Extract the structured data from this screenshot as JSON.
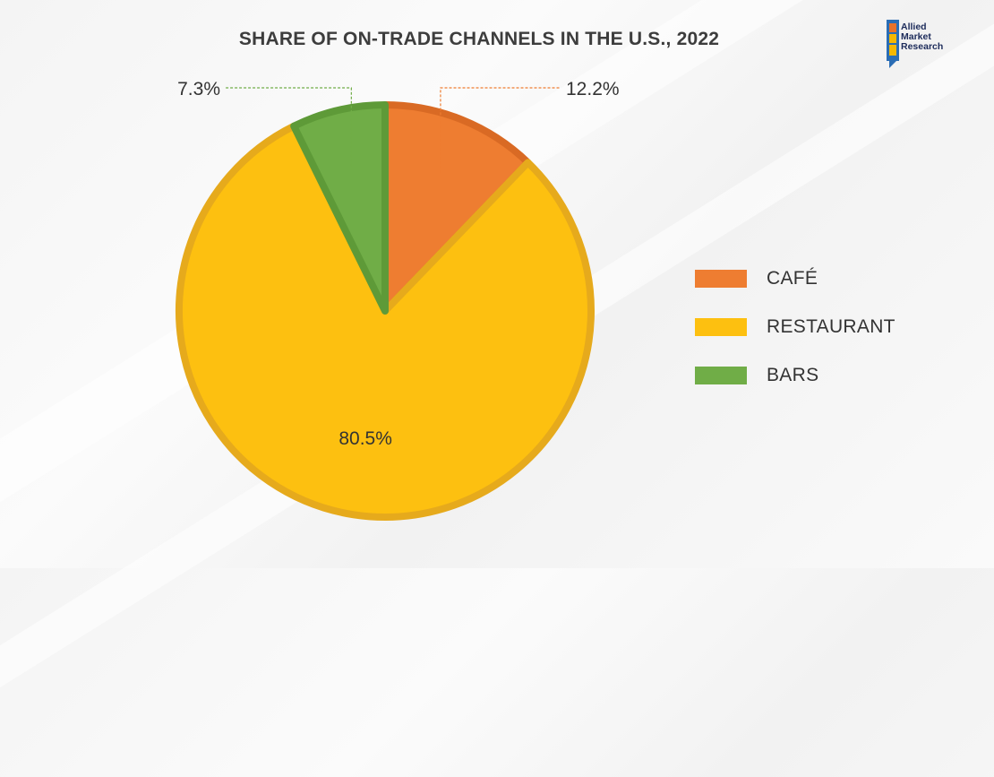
{
  "header": {
    "title": "SHARE OF ON-TRADE CHANNELS IN THE U.S., 2022"
  },
  "logo": {
    "line1": "Allied",
    "line2": "Market",
    "line3": "Research",
    "colors": [
      "#e8722a",
      "#f5b800",
      "#2a6db5",
      "#1c2b5a"
    ]
  },
  "chart_data": {
    "type": "pie",
    "title": "SHARE OF ON-TRADE CHANNELS IN THE U.S., 2022",
    "categories": [
      "CAFÉ",
      "RESTAURANT",
      "BARS"
    ],
    "values": [
      12.2,
      80.5,
      7.3
    ],
    "labels": [
      "12.2%",
      "80.5%",
      "7.3%"
    ],
    "colors": [
      "#ee7d31",
      "#fdc010",
      "#70ad47"
    ],
    "border_colors": [
      "#d96a24",
      "#e6aa1c",
      "#5e9a38"
    ],
    "start_angle_deg": 0,
    "direction": "clockwise",
    "legend_position": "right"
  }
}
